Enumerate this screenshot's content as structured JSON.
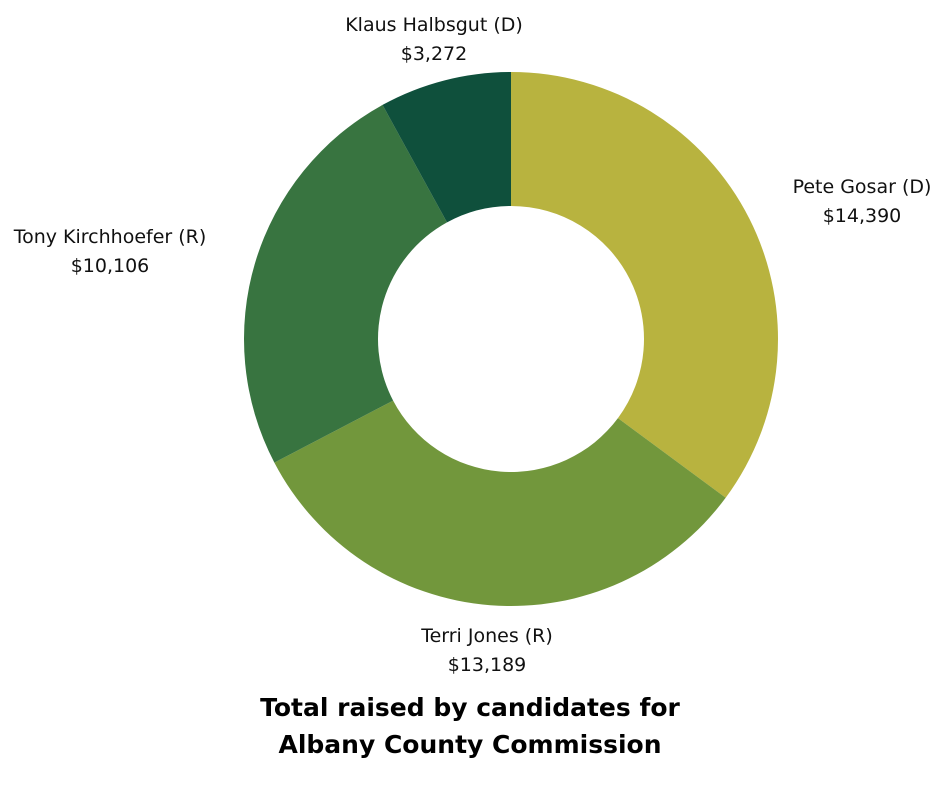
{
  "chart_data": {
    "type": "pie",
    "variant": "donut",
    "title_lines": [
      "Total raised by candidates for",
      "Albany County Commission"
    ],
    "start": "12 o'clock",
    "direction": "clockwise",
    "slices": [
      {
        "name": "Pete Gosar (D)",
        "value": 14390,
        "value_label": "$14,390",
        "color": "#b8b33f"
      },
      {
        "name": "Terri Jones (R)",
        "value": 13189,
        "value_label": "$13,189",
        "color": "#72973c"
      },
      {
        "name": "Tony Kirchhoefer (R)",
        "value": 10106,
        "value_label": "$10,106",
        "color": "#387440"
      },
      {
        "name": "Klaus Halbsgut (D)",
        "value": 3272,
        "value_label": "$3,272",
        "color": "#0f503c"
      }
    ]
  }
}
